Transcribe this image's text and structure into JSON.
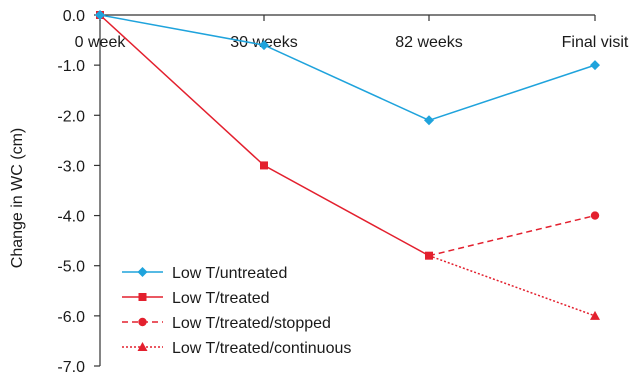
{
  "chart_data": {
    "type": "line",
    "title": "",
    "xlabel": "",
    "ylabel": "Change in WC (cm)",
    "categories": [
      "0 week",
      "30 weeks",
      "82 weeks",
      "Final visit"
    ],
    "ylim": [
      -7.0,
      0.0
    ],
    "yticks": [
      0.0,
      -1.0,
      -2.0,
      -3.0,
      -4.0,
      -5.0,
      -6.0,
      -7.0
    ],
    "ytick_labels": [
      "0.0",
      "-1.0",
      "-2.0",
      "-3.0",
      "-4.0",
      "-5.0",
      "-6.0",
      "-7.0"
    ],
    "grid": false,
    "legend_position": "bottom-left",
    "series": [
      {
        "name": "Low T/untreated",
        "x": [
          "0 week",
          "30 weeks",
          "82 weeks",
          "Final visit"
        ],
        "values": [
          0.0,
          -0.6,
          -2.1,
          -1.0
        ],
        "color": "#1fa3dc",
        "marker": "diamond",
        "dash": "solid"
      },
      {
        "name": "Low T/treated",
        "x": [
          "0 week",
          "30 weeks",
          "82 weeks"
        ],
        "values": [
          0.0,
          -3.0,
          -4.8
        ],
        "color": "#e3202e",
        "marker": "square",
        "dash": "solid"
      },
      {
        "name": "Low T/treated/stopped",
        "x": [
          "82 weeks",
          "Final visit"
        ],
        "values": [
          -4.8,
          -4.0
        ],
        "color": "#e3202e",
        "marker": "circle",
        "dash": "dashed"
      },
      {
        "name": "Low T/treated/continuous",
        "x": [
          "82 weeks",
          "Final visit"
        ],
        "values": [
          -4.8,
          -6.0
        ],
        "color": "#e3202e",
        "marker": "triangle",
        "dash": "dotted"
      }
    ]
  }
}
